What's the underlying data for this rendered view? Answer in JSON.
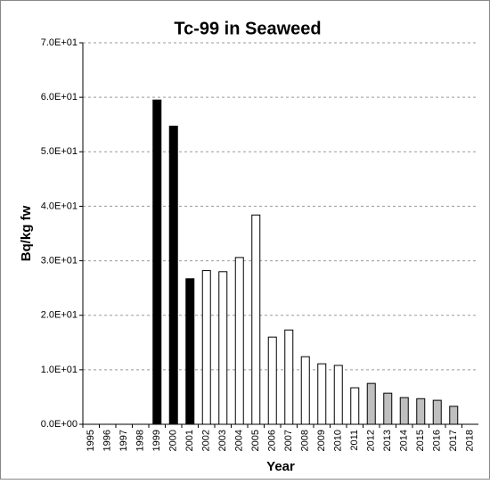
{
  "chart_data": {
    "type": "bar",
    "title": "Tc-99 in Seaweed",
    "x_label": "Year",
    "y_label": "Bq/kg fw",
    "categories": [
      "1995",
      "1996",
      "1997",
      "1998",
      "1999",
      "2000",
      "2001",
      "2002",
      "2003",
      "2004",
      "2005",
      "2006",
      "2007",
      "2008",
      "2009",
      "2010",
      "2011",
      "2012",
      "2013",
      "2014",
      "2015",
      "2016",
      "2017",
      "2018"
    ],
    "values": [
      null,
      null,
      null,
      null,
      59.5,
      54.7,
      26.7,
      28.2,
      28.0,
      30.6,
      38.4,
      16.0,
      17.3,
      12.4,
      11.1,
      10.8,
      6.7,
      7.5,
      5.7,
      4.9,
      4.7,
      4.4,
      3.3,
      null
    ],
    "colors": [
      null,
      null,
      null,
      null,
      "#000000",
      "#000000",
      "#000000",
      "#ffffff",
      "#ffffff",
      "#ffffff",
      "#ffffff",
      "#ffffff",
      "#ffffff",
      "#ffffff",
      "#ffffff",
      "#ffffff",
      "#ffffff",
      "#bfbfbf",
      "#bfbfbf",
      "#bfbfbf",
      "#bfbfbf",
      "#bfbfbf",
      "#bfbfbf",
      null
    ],
    "ylim": [
      0,
      70
    ],
    "yticks": [
      {
        "value": 0,
        "label": "0.0E+00"
      },
      {
        "value": 10,
        "label": "1.0E+01"
      },
      {
        "value": 20,
        "label": "2.0E+01"
      },
      {
        "value": 30,
        "label": "3.0E+01"
      },
      {
        "value": 40,
        "label": "4.0E+01"
      },
      {
        "value": 50,
        "label": "5.0E+01"
      },
      {
        "value": 60,
        "label": "6.0E+01"
      },
      {
        "value": 70,
        "label": "7.0E+01"
      }
    ],
    "grid": true
  }
}
